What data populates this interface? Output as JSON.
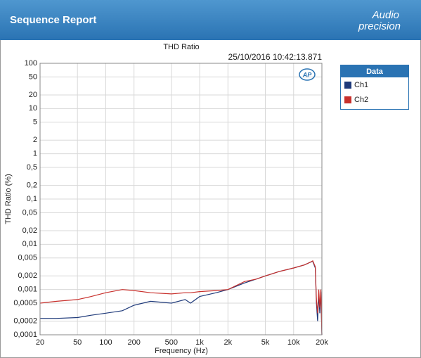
{
  "header": {
    "title": "Sequence Report",
    "logo": [
      "Audio",
      "precision"
    ]
  },
  "chart_data": {
    "type": "line",
    "title": "THD Ratio",
    "subtitle": "25/10/2016 10:42:13.871",
    "x_label": "Frequency (Hz)",
    "y_label": "THD Ratio (%)",
    "xscale": "log",
    "yscale": "log",
    "grid": true,
    "legend_title": "Data",
    "legend_position": "right",
    "x": [
      20,
      30,
      50,
      70,
      100,
      150,
      200,
      300,
      500,
      700,
      800,
      1000,
      1500,
      2000,
      3000,
      4000,
      5000,
      7000,
      10000,
      13000,
      15000,
      16000,
      17000,
      17500,
      18000,
      18500,
      19000,
      19500,
      20000
    ],
    "series": [
      {
        "name": "Ch1",
        "color": "#1f3a7a",
        "values": [
          0.00023,
          0.00023,
          0.00024,
          0.00027,
          0.0003,
          0.00034,
          0.00045,
          0.00055,
          0.0005,
          0.0006,
          0.0005,
          0.0007,
          0.00085,
          0.001,
          0.0014,
          0.0017,
          0.002,
          0.0025,
          0.003,
          0.0035,
          0.004,
          0.0042,
          0.003,
          0.0005,
          0.0002,
          0.0008,
          0.0003,
          0.0009,
          0.0001
        ]
      },
      {
        "name": "Ch2",
        "color": "#c8302c",
        "values": [
          0.0005,
          0.00055,
          0.0006,
          0.0007,
          0.00085,
          0.001,
          0.00095,
          0.00085,
          0.0008,
          0.00085,
          0.00085,
          0.0009,
          0.00095,
          0.001,
          0.0015,
          0.0017,
          0.002,
          0.0025,
          0.003,
          0.0035,
          0.004,
          0.0043,
          0.0032,
          0.0006,
          0.0003,
          0.001,
          0.0004,
          0.001,
          0.0001
        ]
      }
    ],
    "xlim": [
      20,
      20000
    ],
    "ylim": [
      0.0001,
      100
    ],
    "xticks": [
      20,
      50,
      100,
      200,
      500,
      {
        "value": 1000,
        "label": "1k"
      },
      {
        "value": 2000,
        "label": "2k"
      },
      {
        "value": 5000,
        "label": "5k"
      },
      {
        "value": 10000,
        "label": "10k"
      },
      {
        "value": 20000,
        "label": "20k"
      }
    ],
    "yticks": [
      100,
      50,
      20,
      10,
      5,
      2,
      1,
      {
        "value": 0.5,
        "label": "0,5"
      },
      {
        "value": 0.2,
        "label": "0,2"
      },
      {
        "value": 0.1,
        "label": "0,1"
      },
      {
        "value": 0.05,
        "label": "0,05"
      },
      {
        "value": 0.02,
        "label": "0,02"
      },
      {
        "value": 0.01,
        "label": "0,01"
      },
      {
        "value": 0.005,
        "label": "0,005"
      },
      {
        "value": 0.002,
        "label": "0,002"
      },
      {
        "value": 0.001,
        "label": "0,001"
      },
      {
        "value": 0.0005,
        "label": "0,0005"
      },
      {
        "value": 0.0002,
        "label": "0,0002"
      },
      {
        "value": 0.0001,
        "label": "0,0001"
      }
    ]
  }
}
